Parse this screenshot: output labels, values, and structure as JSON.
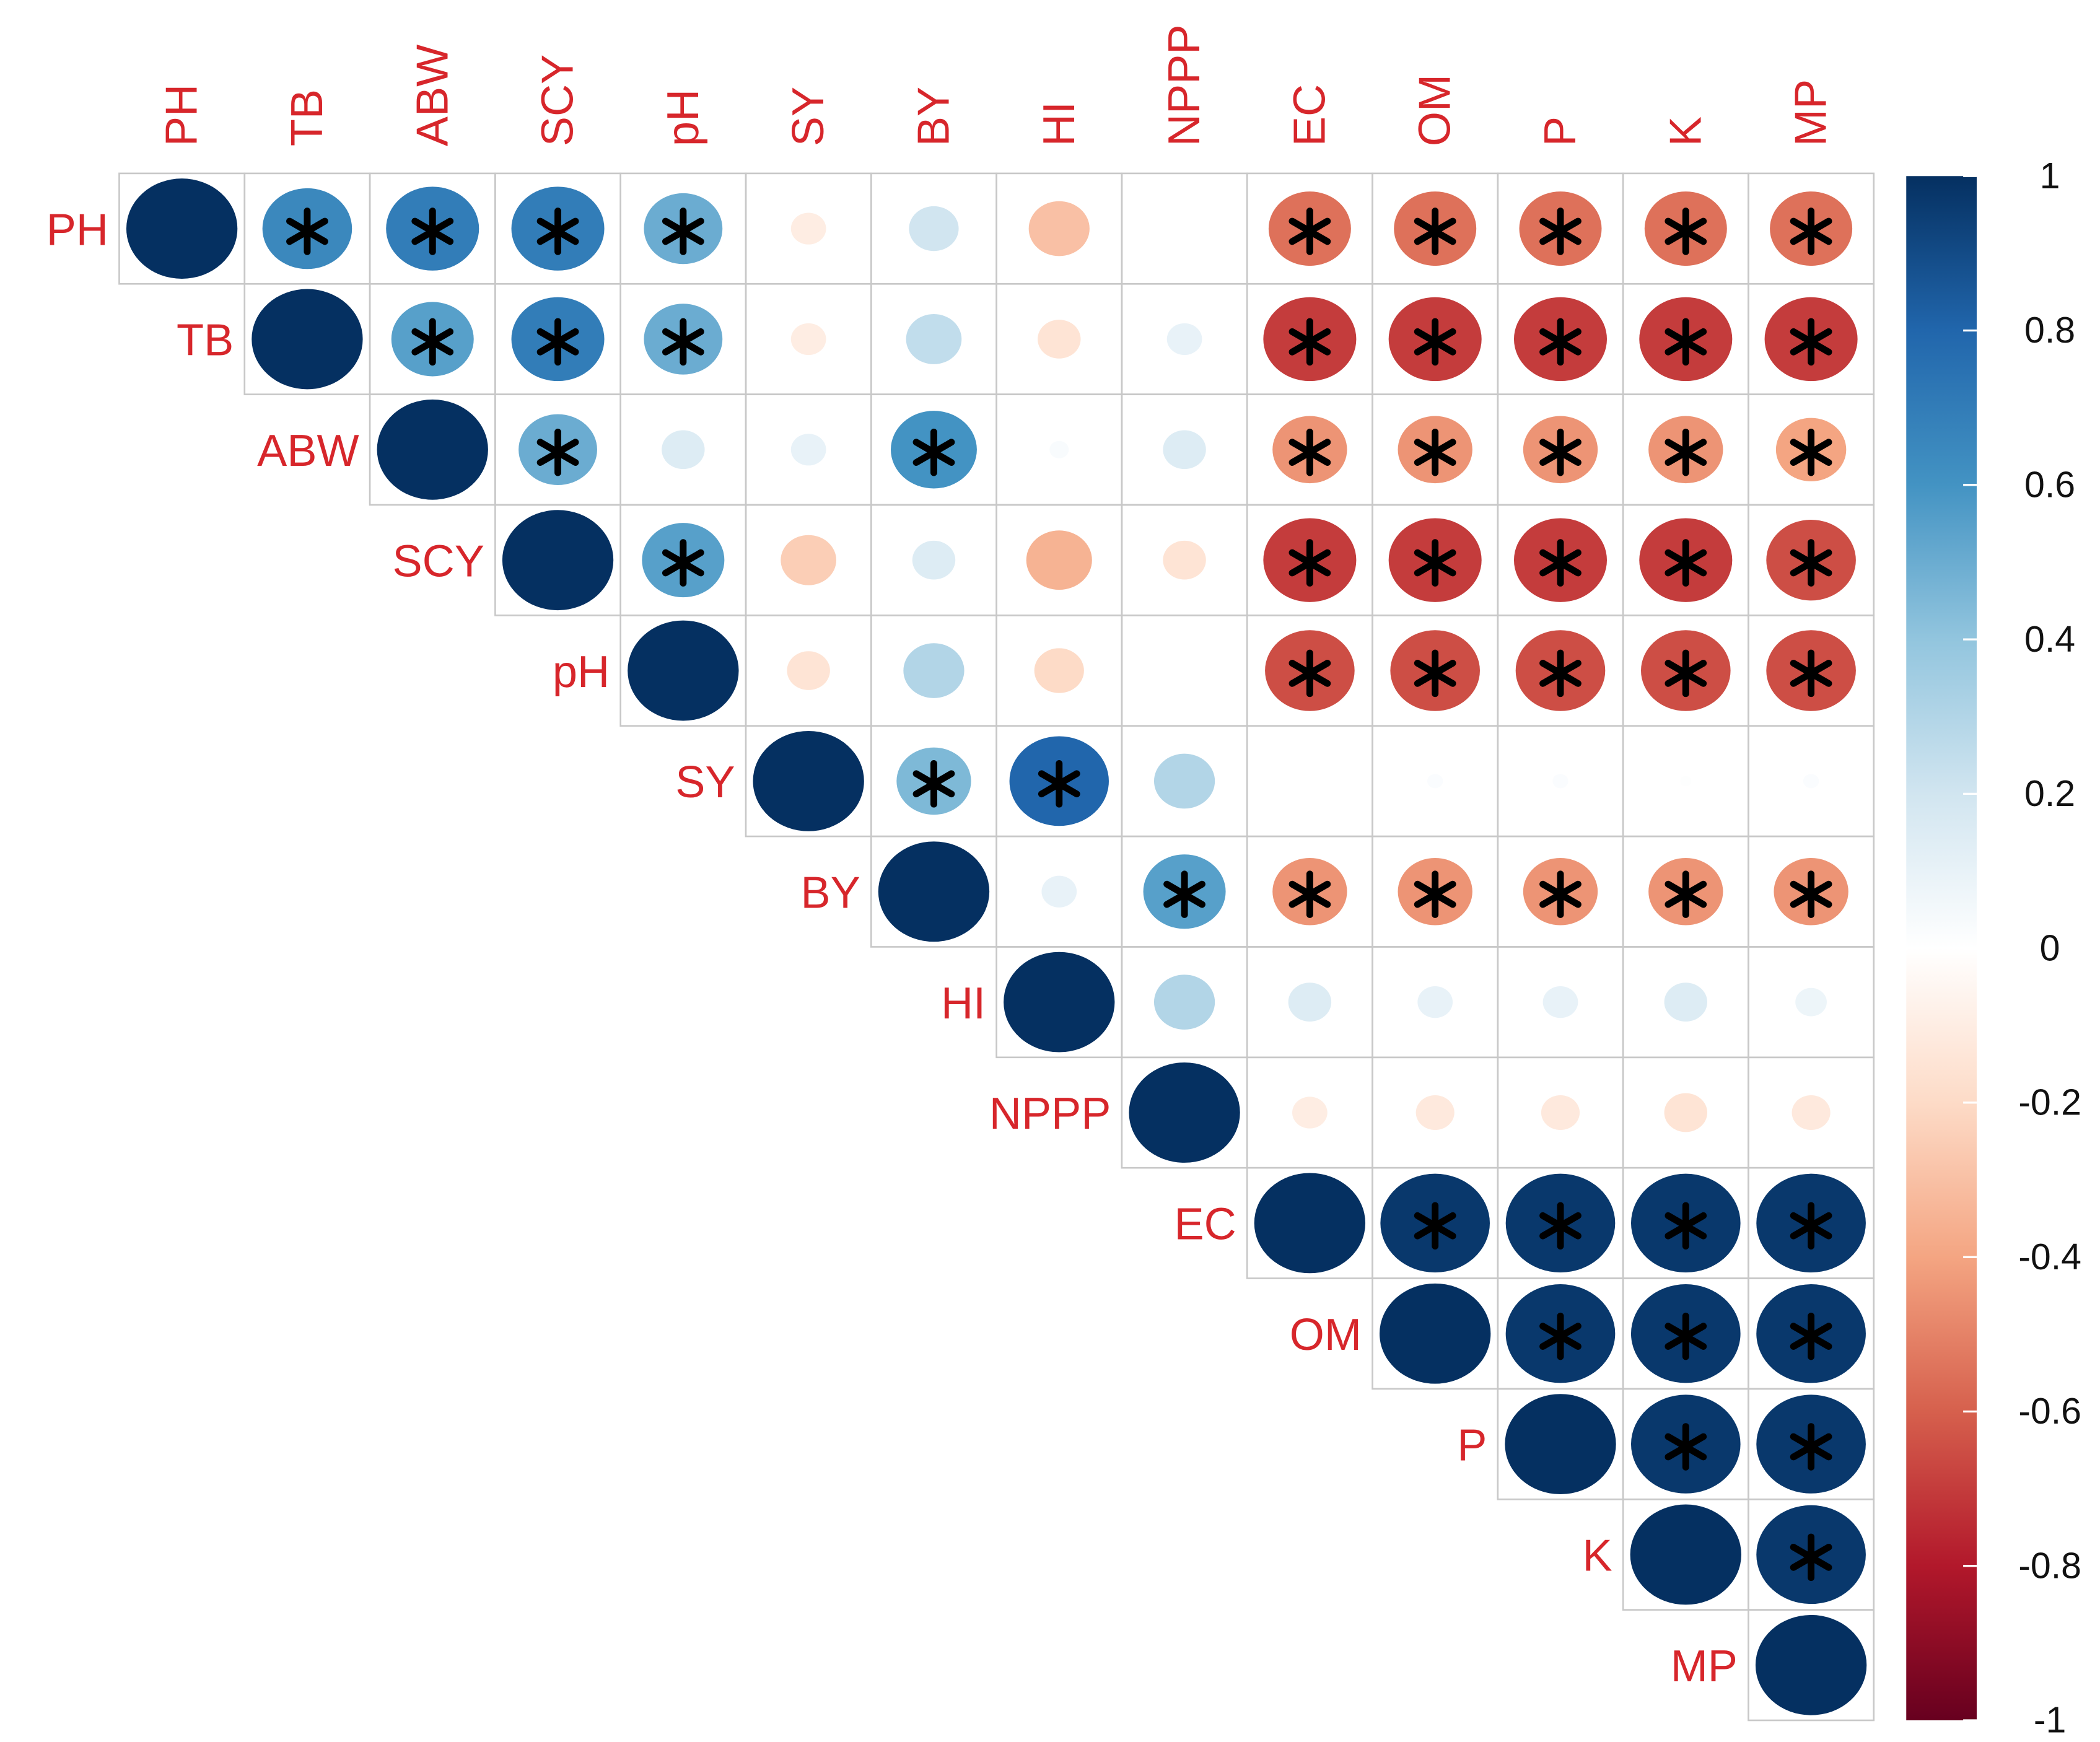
{
  "chart_data": {
    "type": "correlation",
    "variables": [
      "PH",
      "TB",
      "ABW",
      "SCY",
      "pH",
      "SY",
      "BY",
      "HI",
      "NPPP",
      "EC",
      "OM",
      "P",
      "K",
      "MP"
    ],
    "matrix": [
      [
        1,
        0.65,
        0.7,
        0.7,
        0.5,
        -0.1,
        0.2,
        -0.3,
        0,
        -0.55,
        -0.55,
        -0.55,
        -0.55,
        -0.55
      ],
      [
        null,
        1,
        0.55,
        0.7,
        0.5,
        -0.1,
        0.25,
        -0.15,
        0.1,
        -0.7,
        -0.7,
        -0.7,
        -0.7,
        -0.7
      ],
      [
        null,
        null,
        1,
        0.5,
        0.15,
        0.1,
        0.6,
        0.03,
        0.15,
        -0.45,
        -0.45,
        -0.45,
        -0.45,
        -0.4
      ],
      [
        null,
        null,
        null,
        1,
        0.55,
        -0.25,
        0.15,
        -0.35,
        -0.15,
        -0.7,
        -0.7,
        -0.7,
        -0.7,
        -0.65
      ],
      [
        null,
        null,
        null,
        null,
        1,
        -0.15,
        0.3,
        -0.2,
        0,
        -0.65,
        -0.65,
        -0.65,
        -0.65,
        -0.65
      ],
      [
        null,
        null,
        null,
        null,
        null,
        1,
        0.45,
        0.8,
        0.3,
        0,
        0.02,
        0.02,
        0.01,
        0.02
      ],
      [
        null,
        null,
        null,
        null,
        null,
        null,
        1,
        0.1,
        0.55,
        -0.45,
        -0.45,
        -0.45,
        -0.45,
        -0.45
      ],
      [
        null,
        null,
        null,
        null,
        null,
        null,
        null,
        1,
        0.3,
        0.15,
        0.1,
        0.1,
        0.15,
        0.08
      ],
      [
        null,
        null,
        null,
        null,
        null,
        null,
        null,
        null,
        1,
        -0.1,
        -0.12,
        -0.12,
        -0.15,
        -0.12
      ],
      [
        null,
        null,
        null,
        null,
        null,
        null,
        null,
        null,
        null,
        1,
        0.97,
        0.97,
        0.97,
        0.97
      ],
      [
        null,
        null,
        null,
        null,
        null,
        null,
        null,
        null,
        null,
        null,
        1,
        0.97,
        0.97,
        0.97
      ],
      [
        null,
        null,
        null,
        null,
        null,
        null,
        null,
        null,
        null,
        null,
        null,
        1,
        0.97,
        0.97
      ],
      [
        null,
        null,
        null,
        null,
        null,
        null,
        null,
        null,
        null,
        null,
        null,
        null,
        1,
        0.97
      ],
      [
        null,
        null,
        null,
        null,
        null,
        null,
        null,
        null,
        null,
        null,
        null,
        null,
        null,
        1
      ]
    ],
    "significant": [
      [
        false,
        true,
        true,
        true,
        true,
        false,
        false,
        false,
        false,
        true,
        true,
        true,
        true,
        true
      ],
      [
        null,
        false,
        true,
        true,
        true,
        false,
        false,
        false,
        false,
        true,
        true,
        true,
        true,
        true
      ],
      [
        null,
        null,
        false,
        true,
        false,
        false,
        true,
        false,
        false,
        true,
        true,
        true,
        true,
        true
      ],
      [
        null,
        null,
        null,
        false,
        true,
        false,
        false,
        false,
        false,
        true,
        true,
        true,
        true,
        true
      ],
      [
        null,
        null,
        null,
        null,
        false,
        false,
        false,
        false,
        false,
        true,
        true,
        true,
        true,
        true
      ],
      [
        null,
        null,
        null,
        null,
        null,
        false,
        true,
        true,
        false,
        false,
        false,
        false,
        false,
        false
      ],
      [
        null,
        null,
        null,
        null,
        null,
        null,
        false,
        false,
        true,
        true,
        true,
        true,
        true,
        true
      ],
      [
        null,
        null,
        null,
        null,
        null,
        null,
        null,
        false,
        false,
        false,
        false,
        false,
        false,
        false
      ],
      [
        null,
        null,
        null,
        null,
        null,
        null,
        null,
        null,
        false,
        false,
        false,
        false,
        false,
        false
      ],
      [
        null,
        null,
        null,
        null,
        null,
        null,
        null,
        null,
        null,
        false,
        true,
        true,
        true,
        true
      ],
      [
        null,
        null,
        null,
        null,
        null,
        null,
        null,
        null,
        null,
        null,
        false,
        true,
        true,
        true
      ],
      [
        null,
        null,
        null,
        null,
        null,
        null,
        null,
        null,
        null,
        null,
        null,
        false,
        true,
        true
      ],
      [
        null,
        null,
        null,
        null,
        null,
        null,
        null,
        null,
        null,
        null,
        null,
        null,
        false,
        true
      ],
      [
        null,
        null,
        null,
        null,
        null,
        null,
        null,
        null,
        null,
        null,
        null,
        null,
        null,
        false
      ]
    ],
    "clim": [
      -1,
      1
    ],
    "colors": [
      "#67001F",
      "#B2182B",
      "#D6604D",
      "#F4A582",
      "#FDDBC7",
      "#FFFFFF",
      "#D1E5F0",
      "#92C5DE",
      "#4393C3",
      "#2166AC",
      "#053061"
    ],
    "colorbar_ticks": [
      1,
      0.8,
      0.6,
      0.4,
      0.2,
      0,
      -0.2,
      -0.4,
      -0.6,
      -0.8,
      -1
    ]
  }
}
